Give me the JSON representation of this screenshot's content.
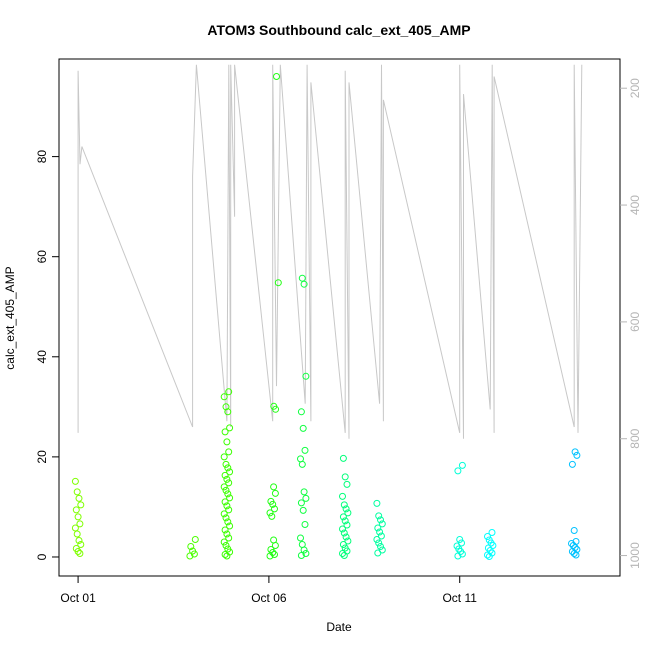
{
  "chart_data": {
    "type": "scatter",
    "title": "ATOM3 Southbound calc_ext_405_AMP",
    "xlabel": "Date",
    "ylabel": "calc_ext_405_AMP",
    "x_ticks": [
      {
        "label": "Oct 01",
        "day": 1
      },
      {
        "label": "Oct 06",
        "day": 6
      },
      {
        "label": "Oct 11",
        "day": 11
      }
    ],
    "y_ticks": [
      0,
      20,
      40,
      60,
      80
    ],
    "ylim": [
      -3.8,
      99.5
    ],
    "xlim_days": [
      0.5,
      15.2
    ],
    "grid": false,
    "secondary_axis": {
      "side": "right",
      "reversed": true,
      "ticks": [
        200,
        400,
        600,
        800,
        1000
      ],
      "ylim": [
        1035,
        150
      ],
      "color": "#b5b5b5"
    },
    "point_clusters": [
      {
        "day": 1.0,
        "values": [
          15.1,
          13.0,
          11.7,
          10.4,
          9.4,
          8.0,
          6.6,
          5.8,
          4.6,
          3.3,
          2.5,
          1.7,
          1.1,
          0.7
        ],
        "color": "#7fff00"
      },
      {
        "day": 4.0,
        "values": [
          3.5,
          2.1,
          1.2,
          0.6,
          0.2
        ],
        "color": "#4cff00"
      },
      {
        "day": 4.9,
        "values": [
          33.0,
          32.0,
          30.0,
          29.0,
          25.8,
          25.0,
          23.0,
          21.0,
          20.0,
          18.5,
          17.8,
          17.0,
          16.3,
          15.5,
          14.8,
          14.0,
          13.3,
          12.6,
          11.8,
          11.0,
          10.2,
          9.4,
          8.6,
          7.8,
          7.0,
          6.2,
          5.4,
          4.6,
          3.8,
          3.0,
          2.3,
          1.6,
          1.0,
          0.5,
          0.2
        ],
        "color": "#3bff00"
      },
      {
        "day": 6.1,
        "values": [
          14.0,
          12.7,
          11.1,
          10.5,
          9.6,
          8.8,
          8.1,
          3.4,
          2.3,
          1.5,
          0.9,
          0.5,
          0.2
        ],
        "color": "#22ff14"
      },
      {
        "day": 6.2,
        "values": [
          96.0,
          54.8,
          30.1,
          29.5
        ],
        "color": "#22ff14"
      },
      {
        "day": 6.9,
        "values": [
          55.7,
          54.5,
          36.1,
          29.0,
          25.7,
          21.3,
          19.6,
          18.5,
          13.0,
          11.7,
          10.8,
          9.3,
          6.5,
          3.8,
          2.5,
          1.4,
          0.7,
          0.3
        ],
        "color": "#0fff40"
      },
      {
        "day": 8.0,
        "values": [
          19.7,
          16.0,
          14.5,
          12.1,
          10.4,
          9.6,
          8.8,
          8.0,
          7.2,
          6.4,
          5.6,
          4.8,
          4.0,
          3.2,
          2.5,
          1.8,
          1.2,
          0.7,
          0.3
        ],
        "color": "#00ff7a"
      },
      {
        "day": 8.9,
        "values": [
          10.7,
          8.2,
          7.4,
          6.6,
          5.8,
          5.0,
          4.2,
          3.5,
          2.8,
          2.1,
          1.4,
          0.8
        ],
        "color": "#00ffa0"
      },
      {
        "day": 11.0,
        "values": [
          18.3,
          17.2,
          3.5,
          2.8,
          2.2,
          1.6,
          1.1,
          0.6,
          0.2
        ],
        "color": "#00ffd8"
      },
      {
        "day": 11.8,
        "values": [
          4.9,
          4.1,
          3.4,
          2.8,
          2.3,
          1.8,
          1.3,
          0.8,
          0.4,
          0.1
        ],
        "color": "#00ffff"
      },
      {
        "day": 14.0,
        "values": [
          21.0,
          20.3,
          18.5,
          5.3,
          3.1,
          2.7,
          2.3,
          1.9,
          1.5,
          1.1,
          0.7,
          0.4
        ],
        "color": "#00c2ff"
      }
    ],
    "secondary_series": {
      "color": "#c8c8c8",
      "points": [
        [
          1.0,
          205
        ],
        [
          1.0,
          790
        ],
        [
          1.0,
          170
        ],
        [
          1.05,
          330
        ],
        [
          1.1,
          300
        ],
        [
          4.0,
          780
        ],
        [
          4.0,
          350
        ],
        [
          4.1,
          160
        ],
        [
          4.9,
          770
        ],
        [
          4.95,
          160
        ],
        [
          5.0,
          780
        ],
        [
          5.0,
          160
        ],
        [
          5.1,
          420
        ],
        [
          5.1,
          160
        ],
        [
          6.1,
          770
        ],
        [
          6.1,
          160
        ],
        [
          6.2,
          710
        ],
        [
          6.3,
          160
        ],
        [
          6.95,
          740
        ],
        [
          7.0,
          160
        ],
        [
          7.1,
          770
        ],
        [
          7.1,
          190
        ],
        [
          8.0,
          790
        ],
        [
          8.0,
          170
        ],
        [
          8.1,
          800
        ],
        [
          8.1,
          190
        ],
        [
          8.9,
          740
        ],
        [
          8.95,
          160
        ],
        [
          9.0,
          770
        ],
        [
          9.0,
          220
        ],
        [
          11.0,
          790
        ],
        [
          11.0,
          160
        ],
        [
          11.1,
          800
        ],
        [
          11.1,
          210
        ],
        [
          11.8,
          750
        ],
        [
          11.85,
          160
        ],
        [
          11.9,
          790
        ],
        [
          11.9,
          180
        ],
        [
          14.0,
          780
        ],
        [
          14.0,
          160
        ],
        [
          14.1,
          790
        ],
        [
          14.2,
          160
        ]
      ]
    }
  }
}
